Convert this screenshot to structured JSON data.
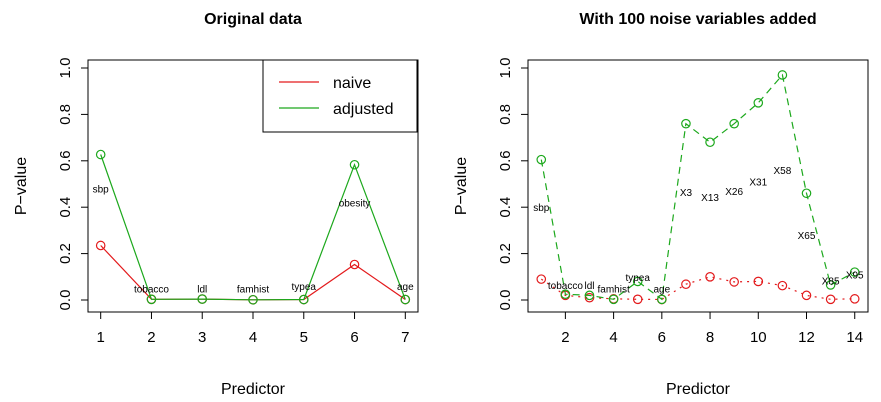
{
  "chart_data": [
    {
      "type": "line",
      "title": "Original data",
      "xlabel": "Predictor",
      "ylabel": "P−value",
      "xlim": [
        1,
        7
      ],
      "ylim": [
        0,
        1
      ],
      "xticks": [
        "1",
        "2",
        "3",
        "4",
        "5",
        "6",
        "7"
      ],
      "yticks": [
        "0.0",
        "0.2",
        "0.4",
        "0.6",
        "0.8",
        "1.0"
      ],
      "legend": {
        "position": "top-right",
        "items": [
          {
            "name": "naive",
            "color": "#e31a1c"
          },
          {
            "name": "adjusted",
            "color": "#1ca81c"
          }
        ]
      },
      "series": [
        {
          "name": "naive",
          "color": "#e31a1c",
          "style": "solid",
          "x": [
            1,
            2,
            3,
            4,
            5,
            6,
            7
          ],
          "values": [
            0.235,
            0.003,
            0.004,
            0.001,
            0.002,
            0.153,
            0.002
          ]
        },
        {
          "name": "adjusted",
          "color": "#1ca81c",
          "style": "solid",
          "x": [
            1,
            2,
            3,
            4,
            5,
            6,
            7
          ],
          "values": [
            0.627,
            0.003,
            0.004,
            0.001,
            0.002,
            0.583,
            0.002
          ]
        }
      ],
      "point_labels": [
        {
          "text": "sbp",
          "x": 1,
          "y": 0.48
        },
        {
          "text": "tobacco",
          "x": 2,
          "y": 0.05
        },
        {
          "text": "ldl",
          "x": 3,
          "y": 0.05
        },
        {
          "text": "famhist",
          "x": 4,
          "y": 0.05
        },
        {
          "text": "typea",
          "x": 5,
          "y": 0.06
        },
        {
          "text": "obesity",
          "x": 6,
          "y": 0.42
        },
        {
          "text": "age",
          "x": 7,
          "y": 0.06
        }
      ]
    },
    {
      "type": "line",
      "title": "With 100 noise variables added",
      "xlabel": "Predictor",
      "ylabel": "P−value",
      "xlim": [
        1,
        14
      ],
      "ylim": [
        0,
        1
      ],
      "xticks": [
        "2",
        "4",
        "6",
        "8",
        "10",
        "12",
        "14"
      ],
      "yticks": [
        "0.0",
        "0.2",
        "0.4",
        "0.6",
        "0.8",
        "1.0"
      ],
      "series": [
        {
          "name": "naive",
          "color": "#e31a1c",
          "style": "dotted",
          "x": [
            1,
            2,
            3,
            4,
            5,
            6,
            7,
            8,
            9,
            10,
            11,
            12,
            13,
            14
          ],
          "values": [
            0.09,
            0.02,
            0.01,
            0.005,
            0.003,
            0.002,
            0.068,
            0.1,
            0.078,
            0.08,
            0.062,
            0.02,
            0.003,
            0.005
          ]
        },
        {
          "name": "adjusted",
          "color": "#1ca81c",
          "style": "dashed",
          "x": [
            1,
            2,
            3,
            4,
            5,
            6,
            7,
            8,
            9,
            10,
            11,
            12,
            13,
            14
          ],
          "values": [
            0.605,
            0.025,
            0.02,
            0.003,
            0.08,
            0.003,
            0.76,
            0.68,
            0.76,
            0.85,
            0.97,
            0.46,
            0.065,
            0.12
          ]
        }
      ],
      "point_labels": [
        {
          "text": "sbp",
          "x": 1,
          "y": 0.4
        },
        {
          "text": "tobacco",
          "x": 2,
          "y": 0.065
        },
        {
          "text": "ldl",
          "x": 3,
          "y": 0.065
        },
        {
          "text": "famhist",
          "x": 4,
          "y": 0.05
        },
        {
          "text": "typea",
          "x": 5,
          "y": 0.1
        },
        {
          "text": "age",
          "x": 6,
          "y": 0.05
        },
        {
          "text": "X3",
          "x": 7,
          "y": 0.465
        },
        {
          "text": "X13",
          "x": 8,
          "y": 0.445
        },
        {
          "text": "X26",
          "x": 9,
          "y": 0.47
        },
        {
          "text": "X31",
          "x": 10,
          "y": 0.51
        },
        {
          "text": "X58",
          "x": 11,
          "y": 0.56
        },
        {
          "text": "X65",
          "x": 12,
          "y": 0.28
        },
        {
          "text": "X85",
          "x": 13,
          "y": 0.085
        },
        {
          "text": "X95",
          "x": 14,
          "y": 0.11
        }
      ]
    }
  ]
}
